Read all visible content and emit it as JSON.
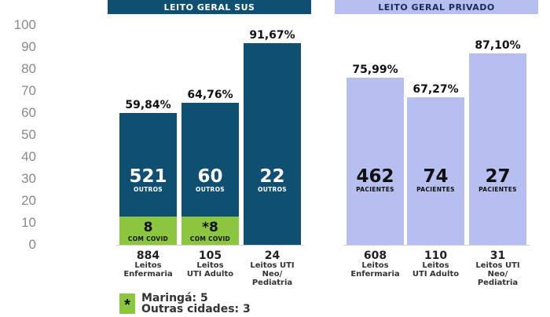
{
  "chart_data": {
    "type": "bar",
    "ylim": [
      0,
      100
    ],
    "yticks": [
      "100",
      "90",
      "80",
      "70",
      "60",
      "50",
      "40",
      "30",
      "20",
      "10",
      "0"
    ],
    "colors": {
      "sus": "#0e4f72",
      "sus_covid": "#8cc63f",
      "privado": "#b6bff0",
      "privado_text": "#111111"
    },
    "panels": [
      {
        "id": "sus",
        "title": "LEITO GERAL SUS",
        "bars": [
          {
            "percent_label": "59,84%",
            "value": 59.84,
            "main_count": "521",
            "main_label": "OUTROS",
            "covid_count": "8",
            "covid_label": "COM COVID",
            "covid_share": 0.2,
            "cat_number": "884",
            "cat_label": [
              "Leitos",
              "Enfermaria"
            ]
          },
          {
            "percent_label": "64,76%",
            "value": 64.76,
            "main_count": "60",
            "main_label": "OUTROS",
            "covid_count": "*8",
            "covid_label": "COM COVID",
            "covid_share": 0.18,
            "cat_number": "105",
            "cat_label": [
              "Leitos",
              "UTI Adulto"
            ]
          },
          {
            "percent_label": "91,67%",
            "value": 91.67,
            "main_count": "22",
            "main_label": "OUTROS",
            "cat_number": "24",
            "cat_label": [
              "Leitos UTI",
              "Neo/",
              "Pediatria"
            ]
          }
        ]
      },
      {
        "id": "privado",
        "title": "LEITO GERAL PRIVADO",
        "bars": [
          {
            "percent_label": "75,99%",
            "value": 75.99,
            "main_count": "462",
            "main_label": "PACIENTES",
            "cat_number": "608",
            "cat_label": [
              "Leitos",
              "Enfermaria"
            ]
          },
          {
            "percent_label": "67,27%",
            "value": 67.27,
            "main_count": "74",
            "main_label": "PACIENTES",
            "cat_number": "110",
            "cat_label": [
              "Leitos",
              "UTI Adulto"
            ]
          },
          {
            "percent_label": "87,10%",
            "value": 87.1,
            "main_count": "27",
            "main_label": "PACIENTES",
            "cat_number": "31",
            "cat_label": [
              "Leitos UTI",
              "Neo/",
              "Pediatria"
            ]
          }
        ]
      }
    ]
  },
  "legend": {
    "marker": "*",
    "lines": [
      "Maringá: 5",
      "Outras cidades: 3"
    ]
  }
}
